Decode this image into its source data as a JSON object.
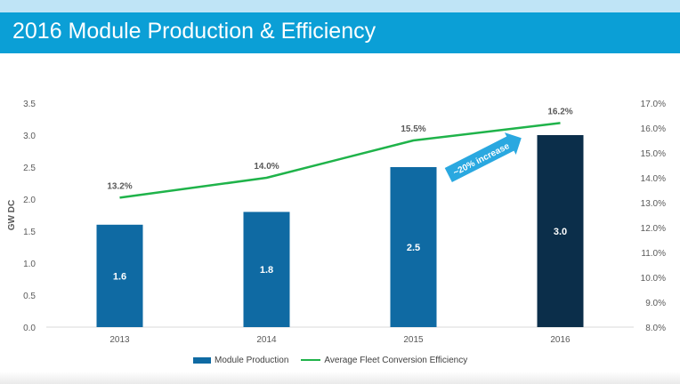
{
  "title": "2016 Module Production & Efficiency",
  "chart_data": {
    "type": "bar",
    "categories": [
      "2013",
      "2014",
      "2015",
      "2016"
    ],
    "series": [
      {
        "name": "Module Production",
        "type": "bar",
        "axis": "left",
        "values": [
          1.6,
          1.8,
          2.5,
          3.0
        ],
        "labels": [
          "1.6",
          "1.8",
          "2.5",
          "3.0"
        ],
        "color": "#0f6aa3",
        "highlight_color": "#0b2e4a"
      },
      {
        "name": "Average Fleet Conversion Efficiency",
        "type": "line",
        "axis": "right",
        "values": [
          13.2,
          14.0,
          15.5,
          16.2
        ],
        "labels": [
          "13.2%",
          "14.0%",
          "15.5%",
          "16.2%"
        ],
        "color": "#1fb34a"
      }
    ],
    "ylabel": "GW DC",
    "ylim": [
      0,
      3.5
    ],
    "yticks": [
      "0.0",
      "0.5",
      "1.0",
      "1.5",
      "2.0",
      "2.5",
      "3.0",
      "3.5"
    ],
    "y2lim": [
      8.0,
      17.0
    ],
    "y2ticks": [
      "8.0%",
      "9.0%",
      "10.0%",
      "11.0%",
      "12.0%",
      "13.0%",
      "14.0%",
      "15.0%",
      "16.0%",
      "17.0%"
    ],
    "annotation": {
      "text": "~20% increase",
      "color": "#2aa8e0"
    },
    "grid": false,
    "legend_position": "bottom"
  }
}
